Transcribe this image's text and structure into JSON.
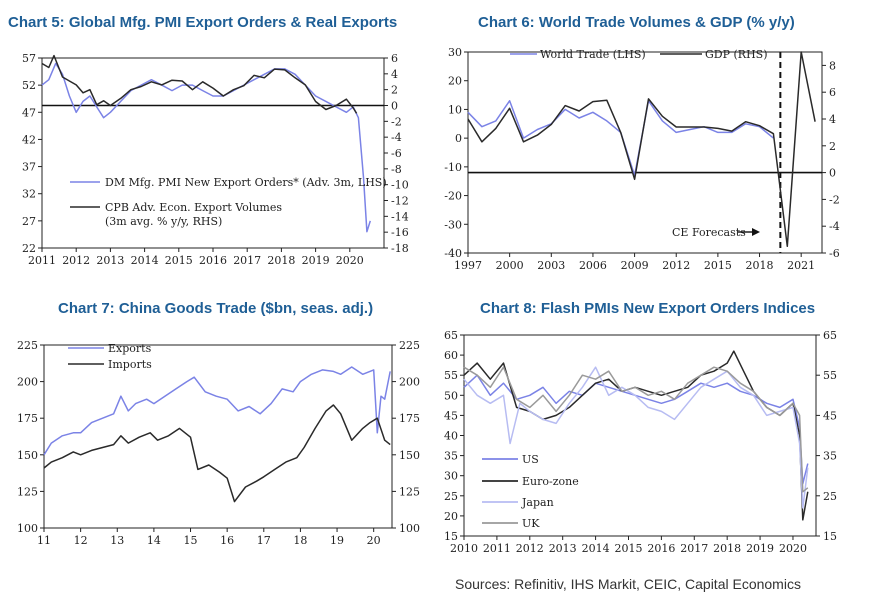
{
  "source": "Sources: Refinitiv, IHS Markit, CEIC, Capital Economics",
  "colors": {
    "title": "#1f5f96",
    "blue_series": "#7b83e6",
    "black_series": "#2a2a2a",
    "light_series": "#b7bcf2",
    "grey_series": "#9a9a9a"
  },
  "chart_data": [
    {
      "id": "chart5",
      "type": "line",
      "title": "Chart 5: Global Mfg. PMI Export Orders & Real Exports",
      "x_ticks": [
        "2011",
        "2012",
        "2013",
        "2014",
        "2015",
        "2016",
        "2017",
        "2018",
        "2019",
        "2020"
      ],
      "x_range": [
        2011,
        2021
      ],
      "left_axis": {
        "range": [
          22,
          57
        ],
        "ticks": [
          22,
          27,
          32,
          37,
          42,
          47,
          52,
          57
        ]
      },
      "right_axis": {
        "range": [
          -18,
          6
        ],
        "ticks": [
          -18,
          -16,
          -14,
          -12,
          -10,
          -8,
          -6,
          -4,
          -2,
          0,
          2,
          4,
          6
        ]
      },
      "legend": [
        "DM Mfg. PMI New Export Orders* (Adv. 3m, LHS)",
        "CPB Adv. Econ. Export Volumes",
        "(3m avg. % y/y, RHS)"
      ],
      "reference_line": {
        "axis": "right",
        "value": 0
      },
      "series": [
        {
          "name": "DM Mfg. PMI New Export Orders* (Adv. 3m, LHS)",
          "axis": "left",
          "color": "blue",
          "x": [
            2011.0,
            2011.2,
            2011.4,
            2011.6,
            2011.8,
            2012.0,
            2012.2,
            2012.4,
            2012.6,
            2012.8,
            2013.0,
            2013.3,
            2013.6,
            2013.9,
            2014.2,
            2014.5,
            2014.8,
            2015.1,
            2015.4,
            2015.7,
            2016.0,
            2016.3,
            2016.6,
            2016.9,
            2017.2,
            2017.5,
            2017.8,
            2018.1,
            2018.4,
            2018.7,
            2019.0,
            2019.3,
            2019.6,
            2019.9,
            2020.1,
            2020.25,
            2020.4,
            2020.5,
            2020.6
          ],
          "y": [
            52,
            53,
            56,
            54,
            50,
            47,
            49,
            50,
            48,
            46,
            47,
            49,
            51,
            52,
            53,
            52,
            51,
            52,
            52,
            51,
            50,
            50,
            51,
            52,
            53,
            54,
            55,
            55,
            54,
            52,
            50,
            49,
            48,
            47,
            48,
            46,
            35,
            25,
            27
          ]
        },
        {
          "name": "CPB Adv. Econ. Export Volumes (3m avg. % y/y, RHS)",
          "axis": "right",
          "color": "black",
          "x": [
            2011.0,
            2011.2,
            2011.35,
            2011.6,
            2011.8,
            2012.0,
            2012.2,
            2012.4,
            2012.6,
            2012.8,
            2013.0,
            2013.3,
            2013.6,
            2013.9,
            2014.2,
            2014.5,
            2014.8,
            2015.1,
            2015.4,
            2015.7,
            2016.0,
            2016.3,
            2016.6,
            2016.9,
            2017.2,
            2017.5,
            2017.8,
            2018.1,
            2018.4,
            2018.7,
            2019.0,
            2019.3,
            2019.6,
            2019.9,
            2020.1,
            2020.2
          ],
          "y": [
            5.3,
            4.8,
            6.3,
            3.6,
            3.1,
            2.6,
            1.6,
            2.0,
            0.1,
            0.6,
            0.0,
            0.9,
            2.0,
            2.4,
            3.0,
            2.6,
            3.2,
            3.1,
            2.0,
            3.0,
            2.2,
            1.2,
            2.0,
            2.5,
            3.8,
            3.5,
            4.6,
            4.5,
            3.5,
            2.6,
            0.5,
            -0.5,
            0.0,
            0.8,
            -0.3,
            -1.0
          ]
        }
      ]
    },
    {
      "id": "chart6",
      "type": "line",
      "title": "Chart 6: World Trade Volumes & GDP (% y/y)",
      "x_ticks": [
        "1997",
        "2000",
        "2003",
        "2006",
        "2009",
        "2012",
        "2015",
        "2018",
        "2021"
      ],
      "x_range": [
        1997,
        2022.5
      ],
      "left_axis": {
        "range": [
          -40,
          30
        ],
        "ticks": [
          -40,
          -30,
          -20,
          -10,
          0,
          10,
          20,
          30
        ]
      },
      "right_axis": {
        "range": [
          -6,
          9
        ],
        "ticks": [
          -6,
          -4,
          -2,
          0,
          2,
          4,
          6,
          8
        ]
      },
      "legend": [
        "World Trade (LHS)",
        "GDP (RHS)"
      ],
      "annotation": "CE Forecasts",
      "forecast_start": 2019.5,
      "reference_line": {
        "axis": "right",
        "value": 0
      },
      "series": [
        {
          "name": "World Trade (LHS)",
          "axis": "left",
          "color": "blue",
          "x": [
            1997,
            1998,
            1999,
            2000,
            2001,
            2002,
            2003,
            2004,
            2005,
            2006,
            2007,
            2008,
            2009,
            2010,
            2011,
            2012,
            2013,
            2014,
            2015,
            2016,
            2017,
            2018,
            2019
          ],
          "y": [
            9,
            4,
            6,
            13,
            0,
            3,
            5,
            10,
            7,
            9,
            6,
            2,
            -13,
            13,
            6,
            2,
            3,
            4,
            2,
            2,
            5,
            4,
            0
          ]
        },
        {
          "name": "GDP (RHS)",
          "axis": "right",
          "color": "black",
          "x": [
            1997,
            1998,
            1999,
            2000,
            2001,
            2002,
            2003,
            2004,
            2005,
            2006,
            2007,
            2008,
            2009,
            2010,
            2011,
            2012,
            2013,
            2014,
            2015,
            2016,
            2017,
            2018,
            2019,
            2020,
            2021,
            2022
          ],
          "y": [
            4.0,
            2.3,
            3.3,
            4.8,
            2.3,
            2.8,
            3.6,
            5.0,
            4.6,
            5.3,
            5.4,
            3.0,
            -0.5,
            5.5,
            4.2,
            3.4,
            3.4,
            3.4,
            3.3,
            3.1,
            3.8,
            3.5,
            2.9,
            -5.5,
            9.0,
            3.8
          ]
        }
      ]
    },
    {
      "id": "chart7",
      "type": "line",
      "title": "Chart 7: China Goods Trade ($bn, seas. adj.)",
      "x_ticks": [
        "11",
        "12",
        "13",
        "14",
        "15",
        "16",
        "17",
        "18",
        "19",
        "20"
      ],
      "x_range": [
        2011,
        2020.5
      ],
      "left_axis": {
        "range": [
          100,
          225
        ],
        "ticks": [
          100,
          125,
          150,
          175,
          200,
          225
        ]
      },
      "right_axis": {
        "range": [
          100,
          225
        ],
        "ticks": [
          100,
          125,
          150,
          175,
          200,
          225
        ]
      },
      "legend": [
        "Exports",
        "Imports"
      ],
      "series": [
        {
          "name": "Exports",
          "axis": "left",
          "color": "blue",
          "x": [
            2011.0,
            2011.2,
            2011.5,
            2011.8,
            2012.0,
            2012.3,
            2012.6,
            2012.9,
            2013.1,
            2013.3,
            2013.5,
            2013.8,
            2014.0,
            2014.3,
            2014.6,
            2014.9,
            2015.1,
            2015.4,
            2015.7,
            2016.0,
            2016.3,
            2016.6,
            2016.9,
            2017.2,
            2017.5,
            2017.8,
            2018.0,
            2018.3,
            2018.6,
            2018.9,
            2019.1,
            2019.4,
            2019.7,
            2020.0,
            2020.1,
            2020.2,
            2020.3,
            2020.45
          ],
          "y": [
            150,
            158,
            163,
            165,
            165,
            172,
            175,
            178,
            190,
            180,
            185,
            188,
            185,
            190,
            195,
            200,
            203,
            193,
            190,
            188,
            180,
            183,
            178,
            185,
            195,
            193,
            200,
            205,
            208,
            207,
            205,
            210,
            205,
            208,
            165,
            190,
            188,
            207
          ]
        },
        {
          "name": "Imports",
          "axis": "right",
          "color": "black",
          "x": [
            2011.0,
            2011.2,
            2011.5,
            2011.8,
            2012.0,
            2012.3,
            2012.6,
            2012.9,
            2013.1,
            2013.3,
            2013.6,
            2013.9,
            2014.1,
            2014.4,
            2014.7,
            2015.0,
            2015.2,
            2015.5,
            2015.8,
            2016.0,
            2016.2,
            2016.5,
            2016.8,
            2017.0,
            2017.3,
            2017.6,
            2017.9,
            2018.1,
            2018.4,
            2018.7,
            2018.9,
            2019.1,
            2019.4,
            2019.7,
            2019.9,
            2020.1,
            2020.3,
            2020.45
          ],
          "y": [
            141,
            145,
            148,
            152,
            150,
            153,
            155,
            157,
            163,
            158,
            162,
            165,
            160,
            163,
            168,
            162,
            140,
            143,
            138,
            134,
            118,
            128,
            132,
            135,
            140,
            145,
            148,
            155,
            168,
            180,
            184,
            178,
            160,
            168,
            172,
            175,
            160,
            157
          ]
        }
      ]
    },
    {
      "id": "chart8",
      "type": "line",
      "title": "Chart 8: Flash PMIs New Export Orders Indices",
      "x_ticks": [
        "2010",
        "2011",
        "2012",
        "2013",
        "2014",
        "2015",
        "2016",
        "2017",
        "2018",
        "2019",
        "2020"
      ],
      "x_range": [
        2010,
        2020.7
      ],
      "left_axis": {
        "range": [
          15,
          65
        ],
        "ticks": [
          15,
          20,
          25,
          30,
          35,
          40,
          45,
          50,
          55,
          60,
          65
        ]
      },
      "right_axis": {
        "range": [
          15,
          65
        ],
        "ticks": [
          15,
          25,
          35,
          45,
          55,
          65
        ]
      },
      "legend": [
        "US",
        "Euro-zone",
        "Japan",
        "UK"
      ],
      "series": [
        {
          "name": "US",
          "color": "blue",
          "x": [
            2010.0,
            2010.4,
            2010.8,
            2011.2,
            2011.6,
            2012.0,
            2012.4,
            2012.8,
            2013.2,
            2013.6,
            2014.0,
            2014.4,
            2014.8,
            2015.2,
            2015.6,
            2016.0,
            2016.4,
            2016.8,
            2017.2,
            2017.6,
            2018.0,
            2018.4,
            2018.8,
            2019.2,
            2019.6,
            2020.0,
            2020.2,
            2020.3,
            2020.45
          ],
          "y": [
            52,
            55,
            50,
            53,
            49,
            50,
            52,
            48,
            51,
            50,
            53,
            52,
            51,
            50,
            49,
            48,
            49,
            51,
            53,
            52,
            53,
            51,
            50,
            48,
            47,
            49,
            42,
            28,
            33
          ]
        },
        {
          "name": "Euro-zone",
          "color": "black",
          "x": [
            2010.0,
            2010.4,
            2010.8,
            2011.2,
            2011.6,
            2012.0,
            2012.4,
            2012.8,
            2013.2,
            2013.6,
            2014.0,
            2014.4,
            2014.8,
            2015.2,
            2015.6,
            2016.0,
            2016.4,
            2016.8,
            2017.2,
            2017.6,
            2018.0,
            2018.2,
            2018.5,
            2018.8,
            2019.2,
            2019.6,
            2020.0,
            2020.2,
            2020.3,
            2020.45
          ],
          "y": [
            55,
            58,
            54,
            58,
            47,
            46,
            44,
            45,
            47,
            50,
            53,
            54,
            51,
            52,
            51,
            50,
            51,
            52,
            55,
            56,
            58,
            61,
            56,
            51,
            47,
            45,
            48,
            40,
            19,
            26
          ]
        },
        {
          "name": "Japan",
          "color": "light",
          "x": [
            2010.0,
            2010.4,
            2010.8,
            2011.2,
            2011.4,
            2011.7,
            2012.0,
            2012.4,
            2012.8,
            2013.2,
            2013.6,
            2014.0,
            2014.4,
            2014.8,
            2015.2,
            2015.6,
            2016.0,
            2016.4,
            2016.8,
            2017.2,
            2017.6,
            2018.0,
            2018.4,
            2018.8,
            2019.2,
            2019.6,
            2020.0,
            2020.2,
            2020.3,
            2020.45
          ],
          "y": [
            54,
            50,
            48,
            50,
            38,
            48,
            46,
            44,
            43,
            48,
            52,
            57,
            50,
            52,
            50,
            47,
            46,
            44,
            48,
            52,
            54,
            56,
            52,
            50,
            45,
            46,
            47,
            38,
            22,
            32
          ]
        },
        {
          "name": "UK",
          "color": "grey",
          "x": [
            2010.0,
            2010.4,
            2010.8,
            2011.2,
            2011.6,
            2012.0,
            2012.4,
            2012.8,
            2013.2,
            2013.6,
            2014.0,
            2014.4,
            2014.8,
            2015.2,
            2015.6,
            2016.0,
            2016.4,
            2016.8,
            2017.2,
            2017.6,
            2018.0,
            2018.4,
            2018.8,
            2019.2,
            2019.6,
            2020.0,
            2020.2,
            2020.3,
            2020.45
          ],
          "y": [
            57,
            55,
            52,
            57,
            49,
            47,
            50,
            46,
            50,
            55,
            54,
            56,
            51,
            52,
            50,
            51,
            49,
            53,
            55,
            57,
            56,
            53,
            51,
            47,
            45,
            48,
            45,
            26,
            27
          ]
        }
      ]
    }
  ]
}
